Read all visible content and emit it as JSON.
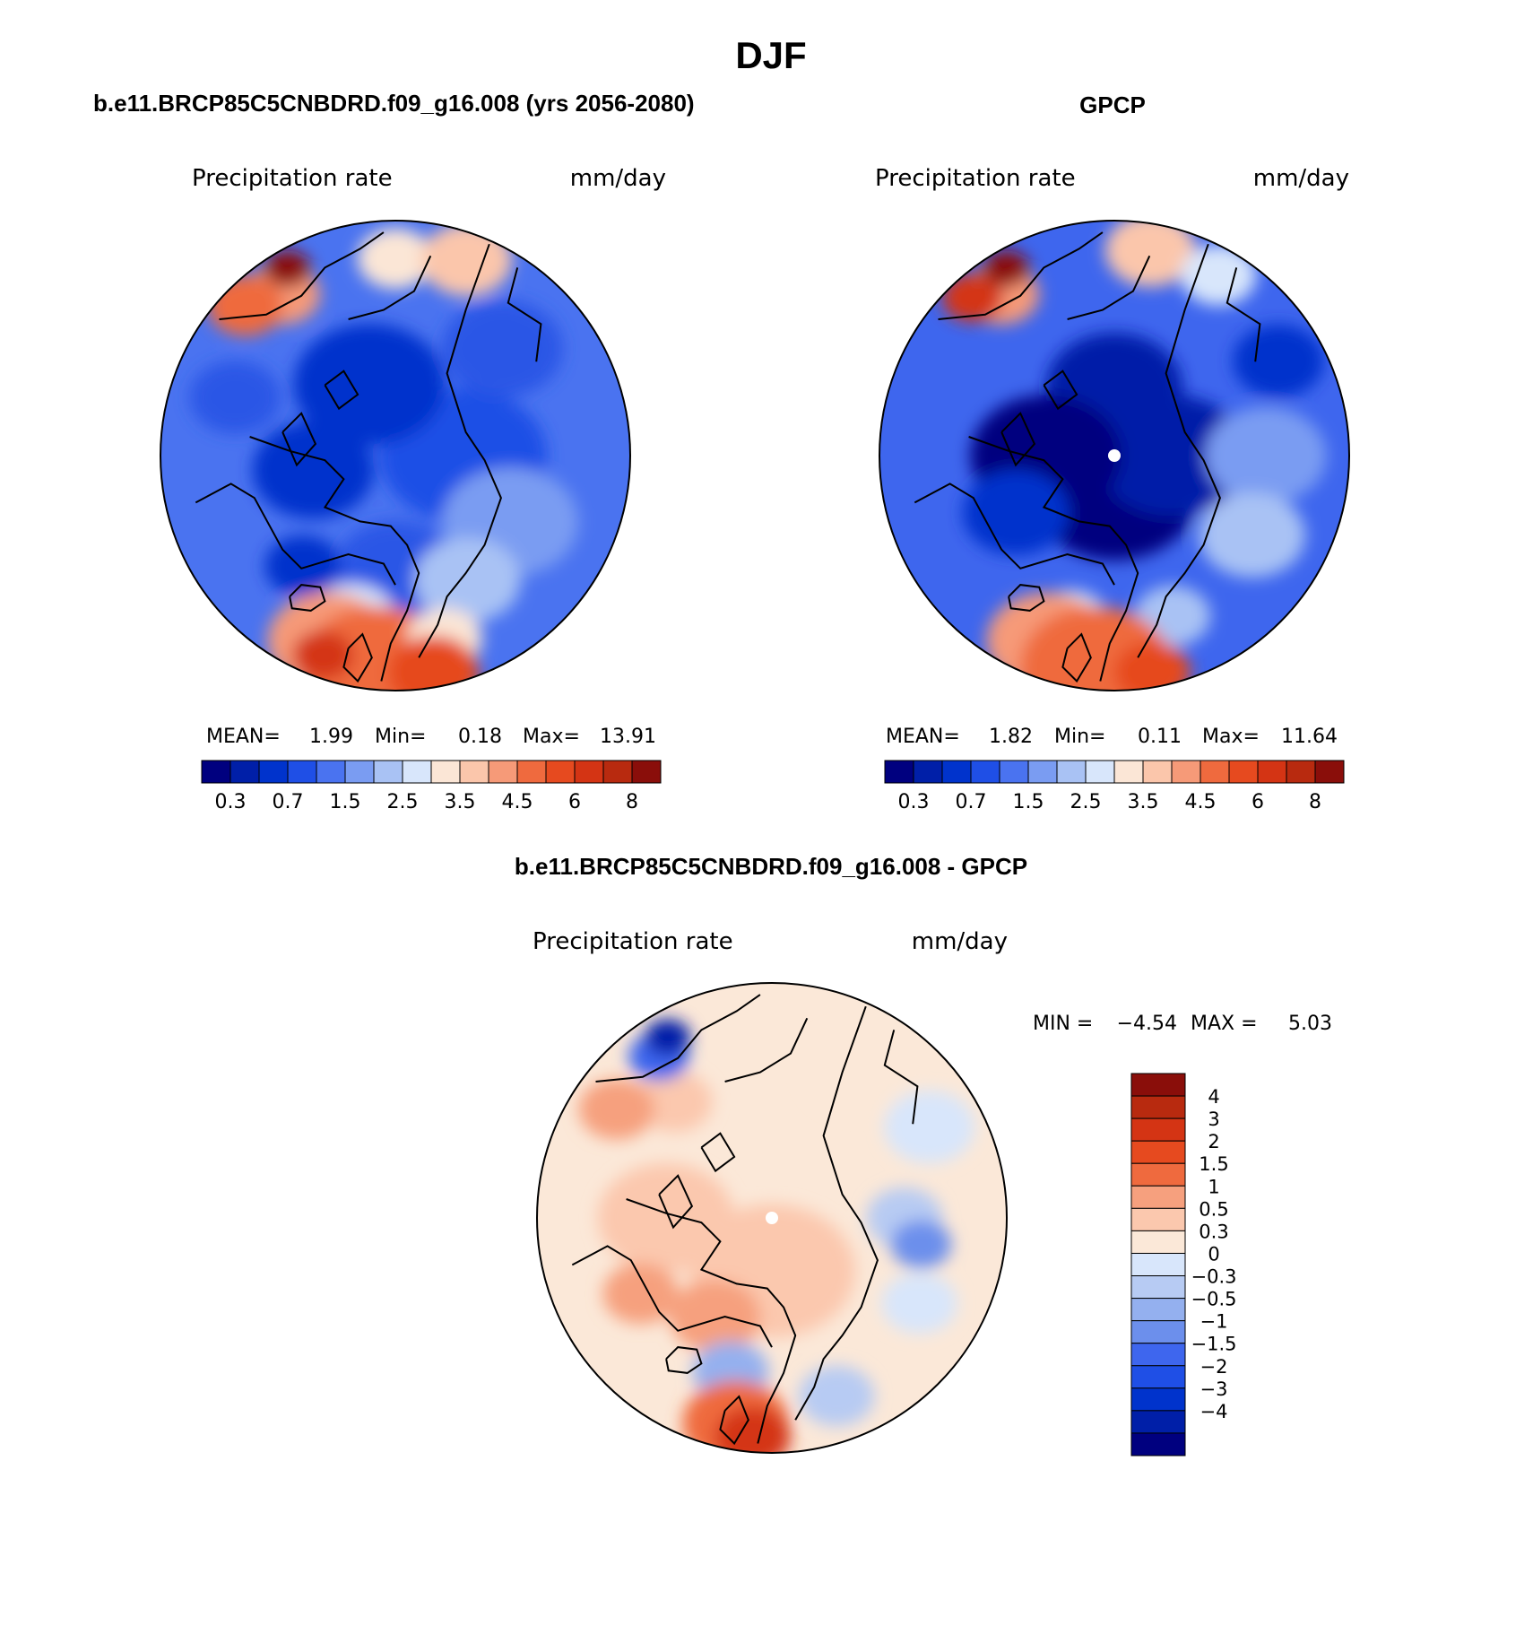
{
  "figure": {
    "title": "DJF"
  },
  "panels": [
    {
      "title": "b.e11.BRCP85C5CNBDRD.f09_g16.008 (yrs 2056-2080)",
      "variable_label": "Precipitation  rate",
      "units_label": "mm/day",
      "stats": {
        "mean_label": "MEAN=",
        "mean_value": "1.99",
        "min_label": "Min=",
        "min_value": "0.18",
        "max_label": "Max=",
        "max_value": "13.91"
      }
    },
    {
      "title": "GPCP",
      "variable_label": "Precipitation  rate",
      "units_label": "mm/day",
      "stats": {
        "mean_label": "MEAN=",
        "mean_value": "1.82",
        "min_label": "Min=",
        "min_value": "0.11",
        "max_label": "Max=",
        "max_value": "11.64"
      }
    },
    {
      "title": "b.e11.BRCP85C5CNBDRD.f09_g16.008 - GPCP",
      "variable_label": "Precipitation  rate",
      "units_label": "mm/day",
      "stats": {
        "min_label": "MIN =",
        "min_value": "−4.54",
        "max_label": "MAX =",
        "max_value": "5.03"
      }
    }
  ],
  "colorbars": {
    "precip": {
      "colors": [
        "#00007f",
        "#001fa8",
        "#0033cc",
        "#1f4fe6",
        "#4a73f0",
        "#7a9cf2",
        "#a9c2f4",
        "#d8e6fb",
        "#fbe6d6",
        "#fbc6ab",
        "#f69a78",
        "#ef6a3e",
        "#e64a1f",
        "#d43414",
        "#b82a0f",
        "#8a0e0a"
      ],
      "tick_labels": [
        "0.3",
        "0.7",
        "1.5",
        "2.5",
        "3.5",
        "4.5",
        "6",
        "8"
      ]
    },
    "diff": {
      "colors": [
        "#8a0e0a",
        "#b82a0f",
        "#d43414",
        "#e64a1f",
        "#ef6a3e",
        "#f6a07e",
        "#fbc8ae",
        "#fbe8d8",
        "#d8e6fb",
        "#b7cbf3",
        "#94b0ef",
        "#6c8fec",
        "#3e66ee",
        "#1f4fe6",
        "#0033cc",
        "#001fa8",
        "#00007f"
      ],
      "tick_labels": [
        "4",
        "3",
        "2",
        "1.5",
        "1",
        "0.5",
        "0.3",
        "0",
        "−0.3",
        "−0.5",
        "−1",
        "−1.5",
        "−2",
        "−3",
        "−4"
      ]
    }
  },
  "map_data": {
    "projection": "north polar stereographic",
    "fields": [
      {
        "panel": 0,
        "pole_marker": false,
        "base_color": "#4a73f0",
        "blobs": [
          {
            "lon": 0,
            "colat": 30,
            "r": 16,
            "color": "#2b56e6"
          },
          {
            "lon": 90,
            "colat": 18,
            "r": 22,
            "color": "#1f4fe6"
          },
          {
            "lon": 200,
            "colat": 20,
            "r": 20,
            "color": "#0033cc"
          },
          {
            "lon": 280,
            "colat": 22,
            "r": 16,
            "color": "#0033cc"
          },
          {
            "lon": 135,
            "colat": 40,
            "r": 16,
            "color": "#2b56e6"
          },
          {
            "lon": 60,
            "colat": 35,
            "r": 18,
            "color": "#7a9cf2"
          },
          {
            "lon": 30,
            "colat": 38,
            "r": 14,
            "color": "#a9c2f4"
          },
          {
            "lon": 320,
            "colat": 38,
            "r": 10,
            "color": "#0033cc"
          },
          {
            "lon": 345,
            "colat": 45,
            "r": 12,
            "color": "#d8e6fb"
          },
          {
            "lon": 340,
            "colat": 52,
            "r": 16,
            "color": "#f69a78"
          },
          {
            "lon": 355,
            "colat": 56,
            "r": 20,
            "color": "#ef6a3e"
          },
          {
            "lon": 340,
            "colat": 56,
            "r": 8,
            "color": "#d43414"
          },
          {
            "lon": 15,
            "colat": 50,
            "r": 10,
            "color": "#fbe6d6"
          },
          {
            "lon": 10,
            "colat": 58,
            "r": 12,
            "color": "#e64a1f"
          },
          {
            "lon": 215,
            "colat": 52,
            "r": 10,
            "color": "#f69a78"
          },
          {
            "lon": 225,
            "colat": 56,
            "r": 10,
            "color": "#ef6a3e"
          },
          {
            "lon": 210,
            "colat": 57,
            "r": 6,
            "color": "#8a0e0a"
          },
          {
            "lon": 180,
            "colat": 52,
            "r": 10,
            "color": "#fbe6d6"
          },
          {
            "lon": 160,
            "colat": 55,
            "r": 12,
            "color": "#fbc6ab"
          },
          {
            "lon": 250,
            "colat": 45,
            "r": 12,
            "color": "#2b56e6"
          }
        ]
      },
      {
        "panel": 1,
        "pole_marker": true,
        "base_color": "#3e66ee",
        "blobs": [
          {
            "lon": 0,
            "colat": 10,
            "r": 22,
            "color": "#00007f"
          },
          {
            "lon": 90,
            "colat": 15,
            "r": 20,
            "color": "#001fa8"
          },
          {
            "lon": 180,
            "colat": 18,
            "r": 18,
            "color": "#001fa8"
          },
          {
            "lon": 270,
            "colat": 18,
            "r": 20,
            "color": "#00007f"
          },
          {
            "lon": 300,
            "colat": 30,
            "r": 14,
            "color": "#0033cc"
          },
          {
            "lon": 90,
            "colat": 40,
            "r": 16,
            "color": "#7a9cf2"
          },
          {
            "lon": 60,
            "colat": 42,
            "r": 14,
            "color": "#a9c2f4"
          },
          {
            "lon": 20,
            "colat": 45,
            "r": 10,
            "color": "#a9c2f4"
          },
          {
            "lon": 345,
            "colat": 45,
            "r": 10,
            "color": "#d8e6fb"
          },
          {
            "lon": 340,
            "colat": 52,
            "r": 16,
            "color": "#f69a78"
          },
          {
            "lon": 355,
            "colat": 56,
            "r": 20,
            "color": "#ef6a3e"
          },
          {
            "lon": 10,
            "colat": 58,
            "r": 10,
            "color": "#e64a1f"
          },
          {
            "lon": 215,
            "colat": 52,
            "r": 10,
            "color": "#f69a78"
          },
          {
            "lon": 222,
            "colat": 56,
            "r": 8,
            "color": "#d43414"
          },
          {
            "lon": 210,
            "colat": 57,
            "r": 6,
            "color": "#8a0e0a"
          },
          {
            "lon": 170,
            "colat": 55,
            "r": 12,
            "color": "#fbc6ab"
          },
          {
            "lon": 150,
            "colat": 55,
            "r": 10,
            "color": "#d8e6fb"
          },
          {
            "lon": 120,
            "colat": 50,
            "r": 12,
            "color": "#0033cc"
          }
        ]
      },
      {
        "panel": 2,
        "pole_marker": true,
        "base_color": "#fbe8d8",
        "blobs": [
          {
            "lon": 0,
            "colat": 14,
            "r": 22,
            "color": "#fbc8ae"
          },
          {
            "lon": 270,
            "colat": 28,
            "r": 18,
            "color": "#fbc8ae"
          },
          {
            "lon": 220,
            "colat": 40,
            "r": 10,
            "color": "#fbc8ae"
          },
          {
            "lon": 330,
            "colat": 30,
            "r": 12,
            "color": "#f6a07e"
          },
          {
            "lon": 300,
            "colat": 40,
            "r": 10,
            "color": "#f6a07e"
          },
          {
            "lon": 90,
            "colat": 35,
            "r": 10,
            "color": "#b7cbf3"
          },
          {
            "lon": 80,
            "colat": 40,
            "r": 8,
            "color": "#6c8fec"
          },
          {
            "lon": 60,
            "colat": 45,
            "r": 10,
            "color": "#d8e6fb"
          },
          {
            "lon": 120,
            "colat": 48,
            "r": 12,
            "color": "#d8e6fb"
          },
          {
            "lon": 150,
            "colat": 45,
            "r": 14,
            "color": "#fbe8d8"
          },
          {
            "lon": 345,
            "colat": 42,
            "r": 10,
            "color": "#94b0ef"
          },
          {
            "lon": 350,
            "colat": 55,
            "r": 14,
            "color": "#ef6a3e"
          },
          {
            "lon": 355,
            "colat": 58,
            "r": 10,
            "color": "#d43414"
          },
          {
            "lon": 20,
            "colat": 50,
            "r": 10,
            "color": "#b7cbf3"
          },
          {
            "lon": 215,
            "colat": 52,
            "r": 8,
            "color": "#3e66ee"
          },
          {
            "lon": 210,
            "colat": 55,
            "r": 6,
            "color": "#001fa8"
          },
          {
            "lon": 235,
            "colat": 50,
            "r": 10,
            "color": "#f6a07e"
          }
        ]
      }
    ]
  }
}
